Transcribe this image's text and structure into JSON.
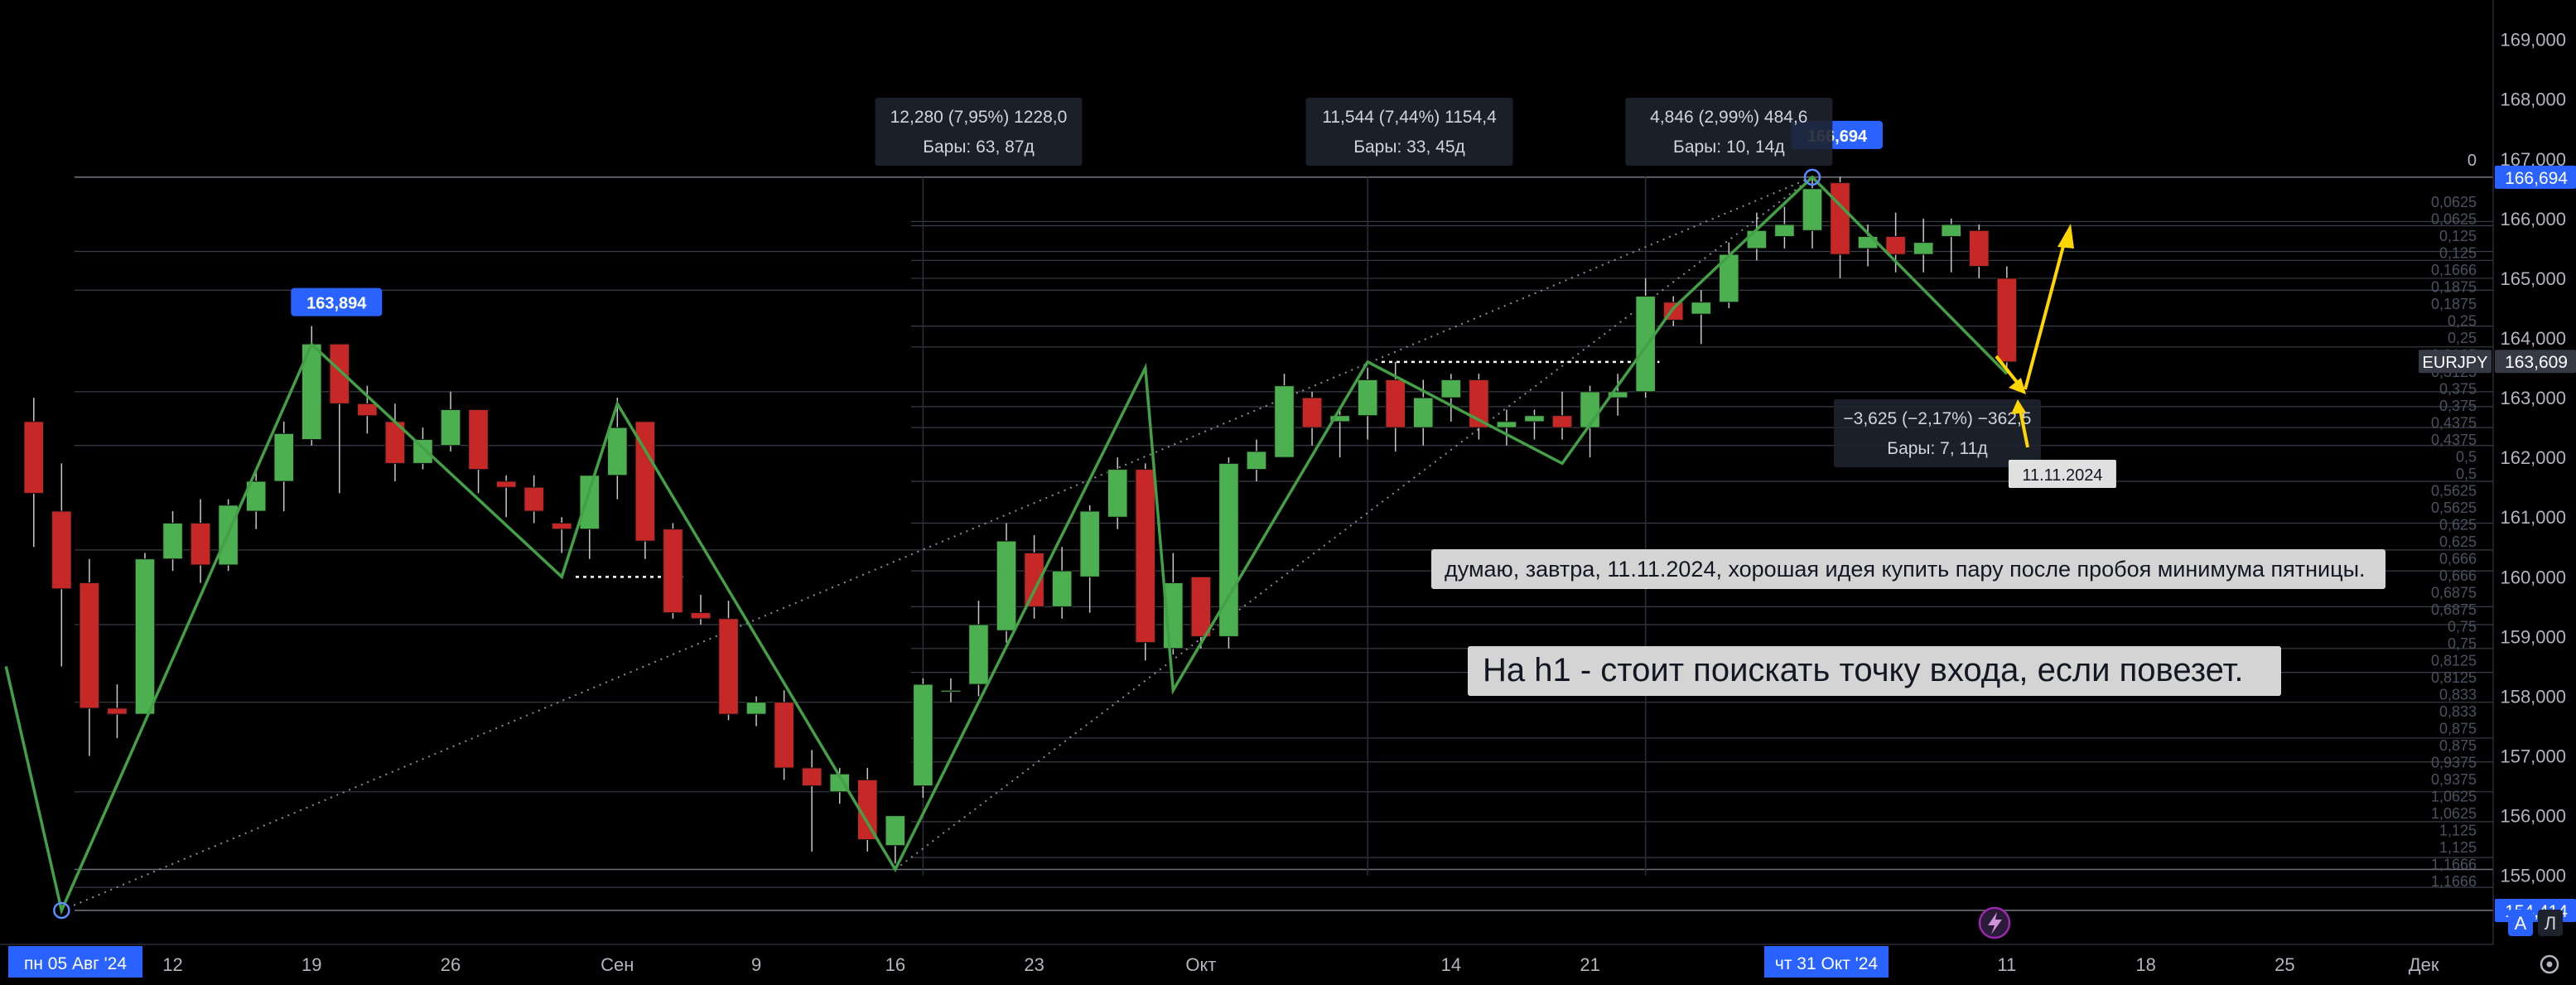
{
  "chart_data": {
    "type": "candlestick",
    "symbol": "EURJPY",
    "ylim": [
      153.9,
      169.3
    ],
    "y_ticks": [
      "169,000",
      "168,000",
      "167,000",
      "166,000",
      "165,000",
      "164,000",
      "163,000",
      "162,000",
      "161,000",
      "160,000",
      "159,000",
      "158,000",
      "157,000",
      "156,000",
      "155,000"
    ],
    "x_ticks": [
      {
        "label": "12",
        "bar": 5
      },
      {
        "label": "19",
        "bar": 10
      },
      {
        "label": "26",
        "bar": 15
      },
      {
        "label": "Сен",
        "bar": 21
      },
      {
        "label": "9",
        "bar": 26
      },
      {
        "label": "16",
        "bar": 31
      },
      {
        "label": "23",
        "bar": 36
      },
      {
        "label": "Окт",
        "bar": 42
      },
      {
        "label": "14",
        "bar": 51
      },
      {
        "label": "21",
        "bar": 56
      },
      {
        "label": "11",
        "bar": 71
      },
      {
        "label": "18",
        "bar": 76
      },
      {
        "label": "25",
        "bar": 81
      },
      {
        "label": "Дек",
        "bar": 86
      }
    ],
    "x_start_label": "пн 05 Авг '24",
    "x_highlight_label": "чт 31 Окт '24",
    "candles": [
      [
        162.6,
        163.0,
        160.5,
        161.4
      ],
      [
        161.1,
        161.9,
        158.5,
        159.8
      ],
      [
        159.9,
        160.3,
        157.0,
        157.8
      ],
      [
        157.8,
        158.2,
        157.3,
        157.7
      ],
      [
        157.7,
        160.4,
        157.7,
        160.3
      ],
      [
        160.3,
        161.1,
        160.1,
        160.9
      ],
      [
        160.9,
        161.3,
        159.9,
        160.2
      ],
      [
        160.2,
        161.3,
        160.1,
        161.2
      ],
      [
        161.1,
        161.8,
        160.8,
        161.6
      ],
      [
        161.6,
        162.6,
        161.1,
        162.4
      ],
      [
        162.3,
        164.2,
        162.2,
        163.9
      ],
      [
        163.9,
        163.9,
        161.4,
        162.9
      ],
      [
        162.9,
        163.2,
        162.4,
        162.7
      ],
      [
        162.6,
        162.9,
        161.6,
        161.9
      ],
      [
        161.9,
        162.5,
        161.8,
        162.3
      ],
      [
        162.2,
        163.1,
        162.1,
        162.8
      ],
      [
        162.8,
        162.8,
        161.4,
        161.8
      ],
      [
        161.6,
        161.7,
        161.0,
        161.5
      ],
      [
        161.5,
        161.7,
        160.9,
        161.1
      ],
      [
        160.9,
        161.0,
        160.4,
        160.8
      ],
      [
        160.8,
        161.6,
        160.3,
        161.7
      ],
      [
        161.7,
        163.0,
        161.3,
        162.5
      ],
      [
        162.6,
        162.6,
        160.3,
        160.6
      ],
      [
        160.8,
        160.9,
        159.3,
        159.4
      ],
      [
        159.4,
        159.7,
        159.2,
        159.3
      ],
      [
        159.3,
        159.6,
        157.6,
        157.7
      ],
      [
        157.7,
        158.0,
        157.5,
        157.9
      ],
      [
        157.9,
        158.1,
        156.6,
        156.8
      ],
      [
        156.8,
        157.1,
        155.4,
        156.5
      ],
      [
        156.4,
        156.8,
        156.2,
        156.7
      ],
      [
        156.6,
        156.8,
        155.4,
        155.6
      ],
      [
        155.5,
        156.0,
        155.2,
        156.0
      ],
      [
        156.5,
        158.3,
        156.3,
        158.2
      ],
      [
        158.1,
        158.3,
        157.9,
        158.1
      ],
      [
        158.2,
        159.6,
        158.0,
        159.2
      ],
      [
        159.1,
        160.9,
        158.9,
        160.6
      ],
      [
        160.4,
        160.7,
        159.3,
        159.5
      ],
      [
        159.5,
        160.5,
        159.3,
        160.1
      ],
      [
        160.0,
        161.2,
        159.4,
        161.1
      ],
      [
        161.0,
        162.0,
        160.8,
        161.8
      ],
      [
        161.8,
        161.9,
        158.6,
        158.9
      ],
      [
        158.8,
        160.4,
        158.7,
        159.9
      ],
      [
        160.0,
        160.0,
        158.8,
        159.0
      ],
      [
        159.0,
        162.0,
        158.8,
        161.9
      ],
      [
        161.8,
        162.3,
        161.6,
        162.1
      ],
      [
        162.0,
        163.4,
        162.0,
        163.2
      ],
      [
        163.0,
        163.1,
        162.2,
        162.5
      ],
      [
        162.6,
        162.8,
        162.0,
        162.7
      ],
      [
        162.7,
        163.5,
        162.3,
        163.3
      ],
      [
        163.3,
        163.6,
        162.1,
        162.5
      ],
      [
        162.5,
        163.3,
        162.2,
        163.0
      ],
      [
        163.0,
        163.4,
        162.6,
        163.3
      ],
      [
        163.3,
        163.4,
        162.3,
        162.5
      ],
      [
        162.5,
        162.8,
        162.2,
        162.6
      ],
      [
        162.6,
        162.8,
        162.3,
        162.7
      ],
      [
        162.7,
        163.1,
        162.3,
        162.5
      ],
      [
        162.5,
        163.2,
        162.0,
        163.1
      ],
      [
        163.0,
        163.4,
        162.7,
        163.1
      ],
      [
        163.1,
        165.0,
        163.0,
        164.7
      ],
      [
        164.6,
        164.7,
        164.2,
        164.3
      ],
      [
        164.4,
        164.8,
        163.9,
        164.6
      ],
      [
        164.6,
        165.6,
        164.5,
        165.4
      ],
      [
        165.5,
        166.1,
        165.3,
        165.8
      ],
      [
        165.7,
        166.2,
        165.5,
        165.9
      ],
      [
        165.8,
        166.7,
        165.5,
        166.5
      ],
      [
        166.6,
        166.7,
        165.0,
        165.4
      ],
      [
        165.5,
        165.9,
        165.2,
        165.7
      ],
      [
        165.7,
        166.1,
        165.1,
        165.4
      ],
      [
        165.4,
        166.0,
        165.1,
        165.6
      ],
      [
        165.7,
        166.0,
        165.1,
        165.9
      ],
      [
        165.8,
        165.9,
        165.0,
        165.2
      ],
      [
        165.0,
        165.2,
        163.4,
        163.6
      ]
    ],
    "y_axis_markers": [
      {
        "label": "166,694",
        "price": 166.694,
        "color": "#2962ff"
      },
      {
        "label": "163,609",
        "price": 163.609,
        "color": "#363a45",
        "prefix": "EURJPY"
      },
      {
        "label": "154,414",
        "price": 154.414,
        "color": "#2962ff"
      }
    ],
    "pivot_labels": [
      {
        "label": "163,894",
        "bar": 10,
        "price": 163.894
      },
      {
        "label": "166,694",
        "bar": 64,
        "price": 166.694
      }
    ],
    "measure_boxes": [
      {
        "line1": "12,280 (7,95%) 1228,0",
        "line2": "Бары: 63, 87д",
        "bar_center": 34.5
      },
      {
        "line1": "11,544 (7,44%) 1154,4",
        "line2": "Бары: 33, 45д",
        "bar_center": 50
      },
      {
        "line1": "4,846 (2,99%) 484,6",
        "line2": "Бары: 10, 14д",
        "bar_center": 61.5
      },
      {
        "line1": "−3,625 (−2,17%) −362,5",
        "line2": "Бары: 7, 11д",
        "bar_center": 69
      }
    ],
    "date_tag": {
      "label": "11.11.2024",
      "bar": 73.5
    },
    "fib_zero_label": "0",
    "fib_labels_right": [
      "0,0625",
      "0,0625",
      "0,125",
      "0,125",
      "0,1666",
      "0,1875",
      "0,1875",
      "0,25",
      "0,25",
      "0,3125",
      "0,3125",
      "0,375",
      "0,375",
      "0,4375",
      "0,4375",
      "0,5",
      "0,5",
      "0,5625",
      "0,5625",
      "0,625",
      "0,625",
      "0,666",
      "0,666",
      "0,6875",
      "0,6875",
      "0,75",
      "0,75",
      "0,8125",
      "0,8125",
      "0,833",
      "0,833",
      "0,875",
      "0,875",
      "0,9375",
      "0,9375",
      "1,0625",
      "1,0625",
      "1,125",
      "1,125",
      "1,1666",
      "1,1666"
    ],
    "annotations": [
      {
        "text": "думаю, завтра, 11.11.2024, хорошая идея купить пару после пробоя минимума пятницы."
      },
      {
        "text": "На h1 - стоит поискать точку входа, если повезет."
      }
    ],
    "colors": {
      "up": "#4caf50",
      "down": "#c62828",
      "zigzag": "#43a047",
      "axis_bg": "#000000",
      "marker_blue": "#2962ff",
      "arrow": "#ffd600",
      "fib_line": "#3a3e48"
    }
  },
  "axis_buttons": {
    "auto": "A",
    "log": "Л"
  }
}
